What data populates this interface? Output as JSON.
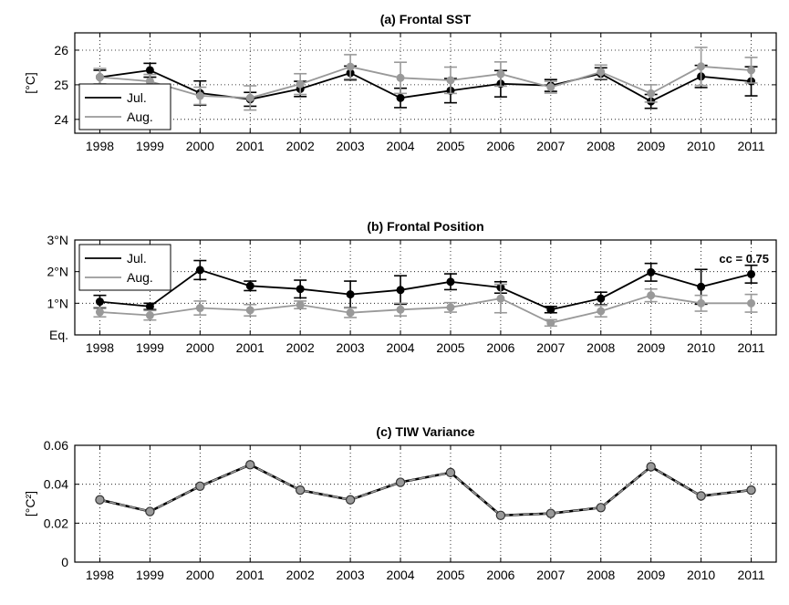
{
  "chart_data": [
    {
      "id": "a",
      "type": "line",
      "title": "(a) Frontal SST",
      "ylabel": "[°C]",
      "ylim": [
        23.6,
        26.5
      ],
      "yticks": [
        24,
        25,
        26
      ],
      "ytick_labels": [
        "24",
        "25",
        "26"
      ],
      "categories": [
        "1998",
        "1999",
        "2000",
        "2001",
        "2002",
        "2003",
        "2004",
        "2005",
        "2006",
        "2007",
        "2008",
        "2009",
        "2010",
        "2011"
      ],
      "grid": true,
      "legend": "lower-left",
      "series": [
        {
          "name": "Jul.",
          "color": "#000000",
          "values": [
            25.22,
            25.42,
            24.76,
            24.58,
            24.88,
            25.34,
            24.62,
            24.83,
            25.03,
            24.98,
            25.32,
            24.52,
            25.24,
            25.1
          ],
          "err": [
            0.2,
            0.2,
            0.35,
            0.2,
            0.22,
            0.2,
            0.28,
            0.35,
            0.38,
            0.17,
            0.17,
            0.2,
            0.32,
            0.42
          ]
        },
        {
          "name": "Aug.",
          "color": "#999999",
          "values": [
            25.22,
            25.1,
            24.68,
            24.62,
            25.02,
            25.52,
            25.2,
            25.13,
            25.31,
            24.93,
            25.37,
            24.75,
            25.53,
            25.42
          ],
          "err": [
            0.25,
            0.2,
            0.25,
            0.35,
            0.3,
            0.35,
            0.45,
            0.38,
            0.35,
            0.17,
            0.2,
            0.25,
            0.55,
            0.37
          ]
        }
      ]
    },
    {
      "id": "b",
      "type": "line",
      "title": "(b) Frontal Position",
      "ylabel": "",
      "ylim": [
        0,
        3
      ],
      "yticks": [
        0,
        1,
        2,
        3
      ],
      "ytick_labels": [
        "Eq.",
        "1°N",
        "2°N",
        "3°N"
      ],
      "categories": [
        "1998",
        "1999",
        "2000",
        "2001",
        "2002",
        "2003",
        "2004",
        "2005",
        "2006",
        "2007",
        "2008",
        "2009",
        "2010",
        "2011"
      ],
      "grid": true,
      "legend": "top-left",
      "annotation": "cc = 0.75",
      "series": [
        {
          "name": "Jul.",
          "color": "#000000",
          "values": [
            1.05,
            0.9,
            2.05,
            1.55,
            1.45,
            1.28,
            1.42,
            1.68,
            1.5,
            0.8,
            1.15,
            1.98,
            1.52,
            1.92
          ],
          "err": [
            0.2,
            0.1,
            0.3,
            0.15,
            0.28,
            0.42,
            0.45,
            0.25,
            0.18,
            0.1,
            0.2,
            0.28,
            0.55,
            0.28
          ]
        },
        {
          "name": "Aug.",
          "color": "#999999",
          "values": [
            0.72,
            0.62,
            0.85,
            0.78,
            0.95,
            0.7,
            0.8,
            0.87,
            1.15,
            0.38,
            0.75,
            1.25,
            1.0,
            1.0
          ],
          "err": [
            0.15,
            0.15,
            0.22,
            0.18,
            0.12,
            0.15,
            0.2,
            0.15,
            0.45,
            0.1,
            0.18,
            0.2,
            0.25,
            0.28
          ]
        }
      ]
    },
    {
      "id": "c",
      "type": "line",
      "title": "(c) TIW Variance",
      "ylabel": "[°C²]",
      "ylim": [
        0,
        0.06
      ],
      "yticks": [
        0,
        0.02,
        0.04,
        0.06
      ],
      "ytick_labels": [
        "0",
        "0.02",
        "0.04",
        "0.06"
      ],
      "categories": [
        "1998",
        "1999",
        "2000",
        "2001",
        "2002",
        "2003",
        "2004",
        "2005",
        "2006",
        "2007",
        "2008",
        "2009",
        "2010",
        "2011"
      ],
      "grid": true,
      "series": [
        {
          "name": "",
          "color": "#999999",
          "values": [
            0.032,
            0.026,
            0.039,
            0.05,
            0.037,
            0.032,
            0.041,
            0.046,
            0.024,
            0.025,
            0.028,
            0.049,
            0.034,
            0.037
          ]
        }
      ]
    }
  ]
}
